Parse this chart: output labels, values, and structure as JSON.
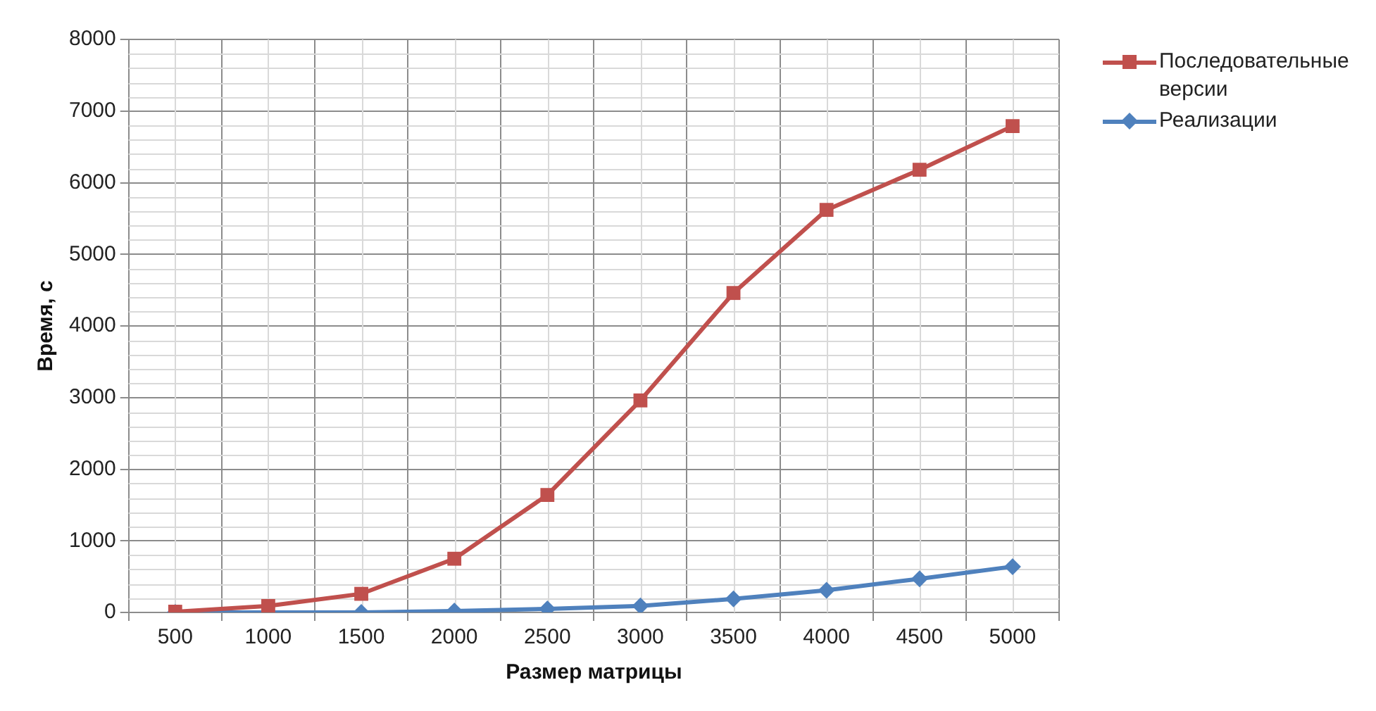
{
  "chart_data": {
    "type": "line",
    "xlabel": "Размер матрицы",
    "ylabel": "Время, с",
    "categories": [
      "500",
      "1000",
      "1500",
      "2000",
      "2500",
      "3000",
      "3500",
      "4000",
      "4500",
      "5000"
    ],
    "series": [
      {
        "name": "Последовательные версии",
        "color": "#c0504d",
        "marker": "square",
        "values": [
          10,
          90,
          260,
          750,
          1640,
          2960,
          4460,
          5620,
          6180,
          6790
        ]
      },
      {
        "name": "Реализации",
        "color": "#4f81bd",
        "marker": "diamond",
        "values": [
          0,
          0,
          0,
          20,
          50,
          90,
          190,
          310,
          470,
          640
        ]
      }
    ],
    "ylim": [
      0,
      8000
    ],
    "yticks": [
      0,
      1000,
      2000,
      3000,
      4000,
      5000,
      6000,
      7000,
      8000
    ],
    "grid": true,
    "legend": "top right",
    "line_style": "solid"
  }
}
